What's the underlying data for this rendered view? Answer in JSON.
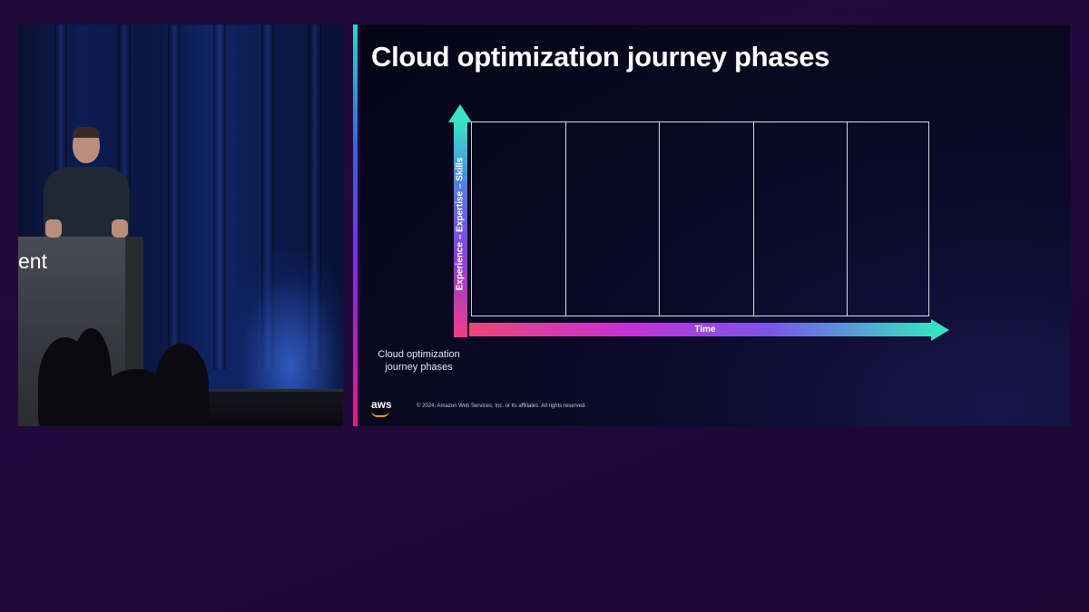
{
  "video": {
    "podium_text": "ent"
  },
  "slide": {
    "title": "Cloud optimization journey phases",
    "y_axis_label": "Experience – Expertise – Skills",
    "x_axis_label": "Time",
    "caption": "Cloud optimization journey phases",
    "phase_columns": 5,
    "footer": {
      "logo": "aws",
      "copyright": "© 2024, Amazon Web Services, Inc. or its affiliates. All rights reserved."
    }
  },
  "colors": {
    "background": "#22093d",
    "slide_background": "#060516",
    "accent_teal": "#34e2c3",
    "accent_pink": "#f04477",
    "accent_purple": "#8a3ee0",
    "aws_orange": "#ff9900"
  }
}
